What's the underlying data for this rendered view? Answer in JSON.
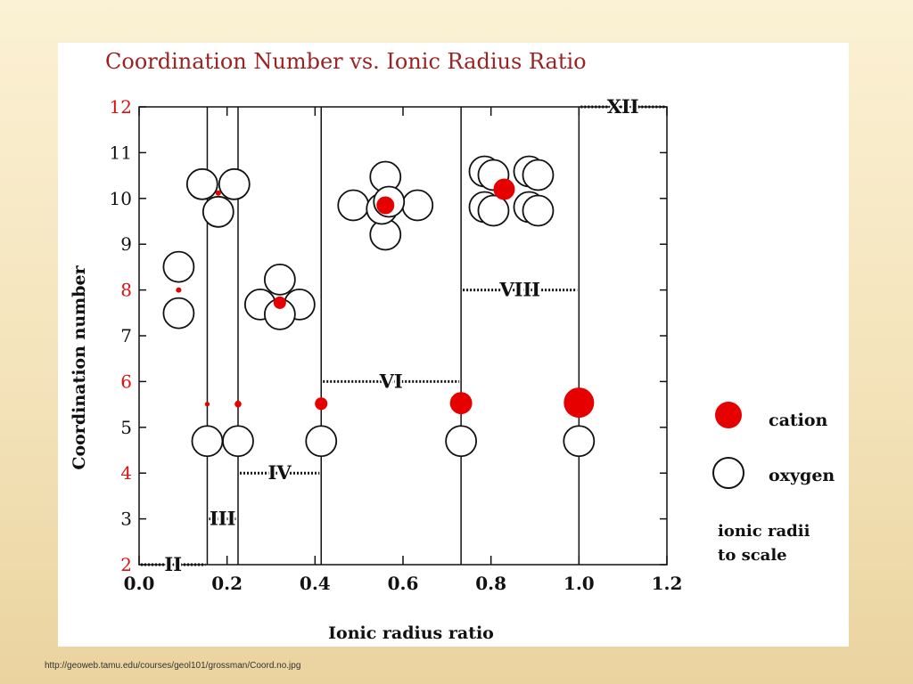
{
  "chart_data": {
    "type": "scatter",
    "title": "Coordination Number vs. Ionic Radius Ratio",
    "xlabel": "Ionic radius ratio",
    "ylabel": "Coordination number",
    "xlim": [
      0.0,
      1.2
    ],
    "ylim": [
      2,
      12
    ],
    "x_ticks": [
      "0.0",
      "0.2",
      "0.4",
      "0.6",
      "0.8",
      "1.0",
      "1.2"
    ],
    "y_ticks": [
      "2",
      "3",
      "4",
      "5",
      "6",
      "7",
      "8",
      "9",
      "10",
      "11",
      "12"
    ],
    "y_tick_colors": [
      "#dd1111",
      "#111111",
      "#dd1111",
      "#111111",
      "#dd1111",
      "#111111",
      "#dd1111",
      "#111111",
      "#111111",
      "#111111",
      "#dd1111"
    ],
    "boundaries": [
      0.155,
      0.225,
      0.414,
      0.732,
      1.0
    ],
    "coordination_regions": [
      {
        "label": "II",
        "x": [
          0.0,
          0.155
        ],
        "y": 2
      },
      {
        "label": "III",
        "x": [
          0.155,
          0.225
        ],
        "y": 3
      },
      {
        "label": "IV",
        "x": [
          0.225,
          0.414
        ],
        "y": 4
      },
      {
        "label": "VI",
        "x": [
          0.414,
          0.732
        ],
        "y": 6
      },
      {
        "label": "VIII",
        "x": [
          0.732,
          1.0
        ],
        "y": 8
      },
      {
        "label": "XII",
        "x": [
          1.0,
          1.2
        ],
        "y": 12
      }
    ],
    "size_comparison": [
      {
        "ratio": 0.155
      },
      {
        "ratio": 0.225
      },
      {
        "ratio": 0.414
      },
      {
        "ratio": 0.732
      },
      {
        "ratio": 1.0
      }
    ],
    "packing_illustrations": [
      {
        "coordination": 2,
        "x": 0.09,
        "y": 8.0
      },
      {
        "coordination": 3,
        "x": 0.18,
        "y": 10.0
      },
      {
        "coordination": 4,
        "x": 0.32,
        "y": 7.8
      },
      {
        "coordination": 6,
        "x": 0.56,
        "y": 9.85
      },
      {
        "coordination": 8,
        "x": 0.83,
        "y": 10.2
      }
    ],
    "legend": [
      {
        "name": "cation",
        "color": "#e60000"
      },
      {
        "name": "oxygen",
        "color": "#ffffff"
      }
    ],
    "note_lines": [
      "ionic radii",
      "to scale"
    ],
    "colors": {
      "cation": "#e60000",
      "title": "#9b2222",
      "axis_red": "#dd1111",
      "ink": "#111111"
    }
  },
  "footer": {
    "source_url": "http://geoweb.tamu.edu/courses/geol101/grossman/Coord.no.jpg"
  }
}
